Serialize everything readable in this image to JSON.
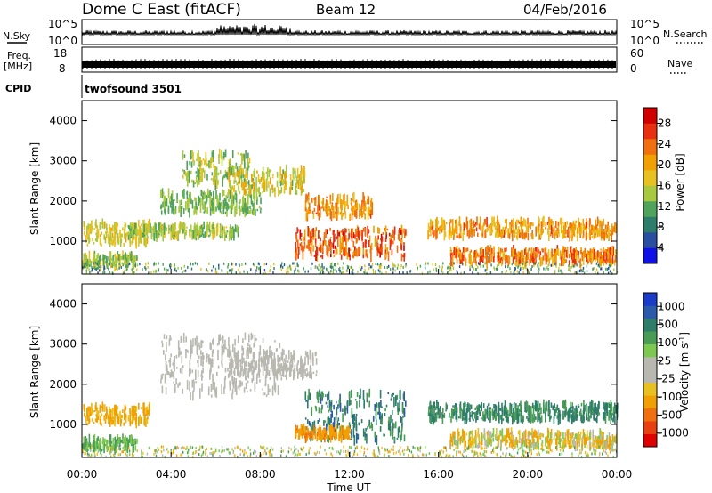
{
  "header": {
    "title": "Dome C East (fitACF)",
    "beam": "Beam 12",
    "date": "04/Feb/2016"
  },
  "params": {
    "nsky_label": "N.Sky",
    "nsky_ticks": [
      "10^5",
      "10^0"
    ],
    "nsearch_label": "N.Search",
    "nsearch_ticks": [
      "10^5",
      "10^0"
    ],
    "freq_label_1": "Freq.",
    "freq_label_2": "[MHz]",
    "freq_ticks": [
      "18",
      "8"
    ],
    "nave_label": "Nave",
    "nave_ticks": [
      "60",
      "0"
    ],
    "cpid_label": "CPID",
    "cpid_value": "twofsound 3501"
  },
  "colors": {
    "power": [
      "#1010e8",
      "#2a4fa0",
      "#2e7d6a",
      "#4fa35a",
      "#a8c840",
      "#e8c020",
      "#f0a000",
      "#f07010",
      "#e83010",
      "#d00000"
    ],
    "velocity_pos": [
      "#1a3cc8",
      "#2a5aa8",
      "#2e7d6a",
      "#4a9c54",
      "#7dc850"
    ],
    "velocity_gs": "#b8b8b0",
    "velocity_neg": [
      "#e8c020",
      "#f0a000",
      "#f07010",
      "#e84010",
      "#e00000"
    ]
  },
  "chart_data": [
    {
      "type": "heatmap",
      "name": "power",
      "ylabel": "Slant Range [km]",
      "xlabel": "",
      "ylim": [
        180,
        4500
      ],
      "yticks": [
        "4000",
        "3000",
        "2000",
        "1000"
      ],
      "colorbar_label": "Power [dB]",
      "colorbar_ticks": [
        "28",
        "24",
        "20",
        "16",
        "12",
        "8",
        "4"
      ],
      "colorbar_range": [
        0,
        32
      ],
      "echo_bands": [
        {
          "t0": 0.0,
          "t1": 3.0,
          "r0": 900,
          "r1": 1450,
          "v0": 14,
          "v1": 20
        },
        {
          "t0": 0.0,
          "t1": 2.5,
          "r0": 380,
          "r1": 650,
          "v0": 10,
          "v1": 18
        },
        {
          "t0": 2.0,
          "t1": 7.0,
          "r0": 1100,
          "r1": 1400,
          "v0": 10,
          "v1": 18
        },
        {
          "t0": 3.5,
          "t1": 8.0,
          "r0": 1700,
          "r1": 2200,
          "v0": 10,
          "v1": 16
        },
        {
          "t0": 4.5,
          "t1": 7.5,
          "r0": 2400,
          "r1": 3200,
          "v0": 10,
          "v1": 18
        },
        {
          "t0": 6.5,
          "t1": 10.0,
          "r0": 2200,
          "r1": 2800,
          "v0": 12,
          "v1": 22
        },
        {
          "t0": 9.5,
          "t1": 14.5,
          "r0": 600,
          "r1": 1300,
          "v0": 20,
          "v1": 30
        },
        {
          "t0": 10.0,
          "t1": 13.0,
          "r0": 1600,
          "r1": 2100,
          "v0": 18,
          "v1": 26
        },
        {
          "t0": 15.5,
          "t1": 24.0,
          "r0": 1100,
          "r1": 1500,
          "v0": 16,
          "v1": 26
        },
        {
          "t0": 16.5,
          "t1": 24.0,
          "r0": 450,
          "r1": 800,
          "v0": 18,
          "v1": 28
        }
      ]
    },
    {
      "type": "heatmap",
      "name": "velocity",
      "ylabel": "Slant Range [km]",
      "xlabel": "Time UT",
      "ylim": [
        180,
        4500
      ],
      "yticks": [
        "4000",
        "3000",
        "2000",
        "1000"
      ],
      "xticks": [
        "00:00",
        "04:00",
        "08:00",
        "12:00",
        "16:00",
        "20:00",
        "00:00"
      ],
      "xlim": [
        0,
        24
      ],
      "colorbar_label": "Velocity [m s",
      "colorbar_label_sup": "-1",
      "colorbar_label_end": "]",
      "colorbar_ticks": [
        "1000",
        "500",
        "100",
        "25",
        "-25",
        "-100",
        "-500",
        "-1000"
      ],
      "colorbar_range": [
        -1000,
        1000
      ],
      "echo_bands": [
        {
          "t0": 0.0,
          "t1": 3.0,
          "r0": 1000,
          "r1": 1450,
          "v0": -200,
          "v1": -50
        },
        {
          "t0": 0.0,
          "t1": 2.5,
          "r0": 380,
          "r1": 650,
          "v0": 50,
          "v1": 150
        },
        {
          "t0": 3.5,
          "t1": 9.0,
          "r0": 1700,
          "r1": 3200,
          "v0": -20,
          "v1": 20
        },
        {
          "t0": 6.5,
          "t1": 10.5,
          "r0": 2200,
          "r1": 2800,
          "v0": -20,
          "v1": 20
        },
        {
          "t0": 10.0,
          "t1": 14.5,
          "r0": 600,
          "r1": 1800,
          "v0": 100,
          "v1": 600
        },
        {
          "t0": 9.5,
          "t1": 12.0,
          "r0": 650,
          "r1": 900,
          "v0": -300,
          "v1": -100
        },
        {
          "t0": 15.5,
          "t1": 24.0,
          "r0": 1100,
          "r1": 1500,
          "v0": 100,
          "v1": 500
        },
        {
          "t0": 16.5,
          "t1": 24.0,
          "r0": 450,
          "r1": 800,
          "v0": -200,
          "v1": 80
        }
      ]
    }
  ]
}
